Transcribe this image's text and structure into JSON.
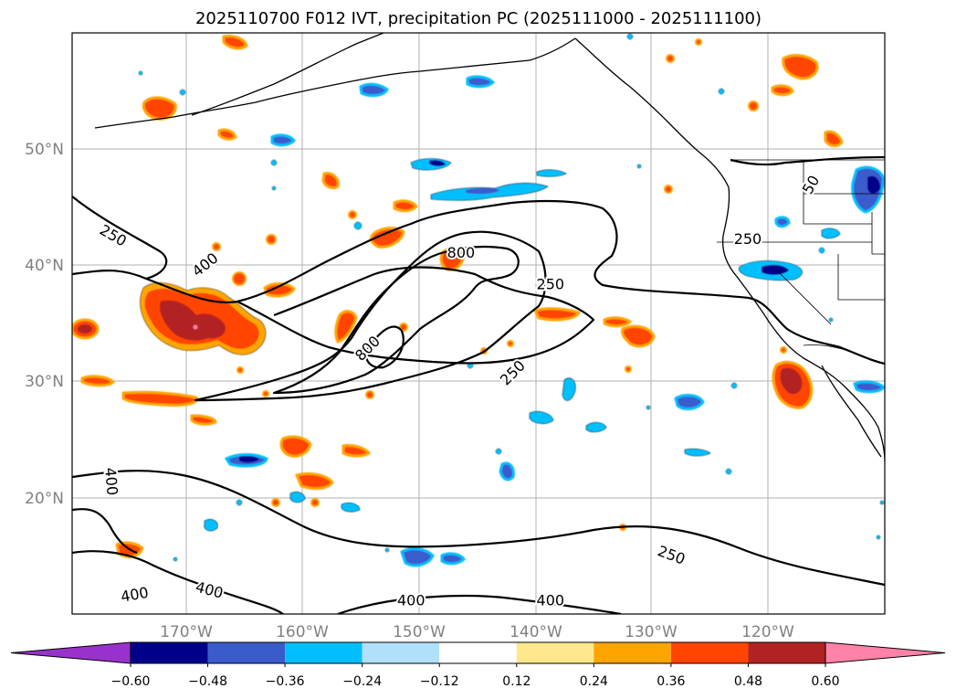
{
  "chart_data": {
    "type": "contour-map",
    "title": "2025110700 F012 IVT, precipitation PC (2025111000 - 2025111100)",
    "x_axis": {
      "ticks": [
        {
          "value": -170,
          "label": "170°W"
        },
        {
          "value": -160,
          "label": "160°W"
        },
        {
          "value": -150,
          "label": "150°W"
        },
        {
          "value": -140,
          "label": "140°W"
        },
        {
          "value": -130,
          "label": "130°W"
        },
        {
          "value": -120,
          "label": "120°W"
        }
      ],
      "range": [
        -178,
        -108
      ]
    },
    "y_axis": {
      "ticks": [
        {
          "value": 20,
          "label": "20°N"
        },
        {
          "value": 30,
          "label": "30°N"
        },
        {
          "value": 40,
          "label": "40°N"
        },
        {
          "value": 50,
          "label": "50°N"
        }
      ],
      "range": [
        10,
        60
      ]
    },
    "grid": true,
    "ivt_contour_labels": [
      {
        "text": "250",
        "lon": -174.5,
        "lat": 42.5,
        "angle": 30
      },
      {
        "text": "400",
        "lon": -166.5,
        "lat": 40.0,
        "angle": -38
      },
      {
        "text": "800",
        "lon": -144.5,
        "lat": 41.0,
        "angle": 0
      },
      {
        "text": "250",
        "lon": -136.8,
        "lat": 38.3,
        "angle": 0
      },
      {
        "text": "800",
        "lon": -152.5,
        "lat": 32.8,
        "angle": -45
      },
      {
        "text": "250",
        "lon": -140.0,
        "lat": 30.7,
        "angle": -45
      },
      {
        "text": "50",
        "lon": -114.3,
        "lat": 46.9,
        "angle": -60
      },
      {
        "text": "250",
        "lon": -119.8,
        "lat": 42.2,
        "angle": 0
      },
      {
        "text": "400",
        "lon": -174.7,
        "lat": 21.4,
        "angle": 85
      },
      {
        "text": "250",
        "lon": -126.4,
        "lat": 15.0,
        "angle": 20
      },
      {
        "text": "400",
        "lon": -172.6,
        "lat": 11.6,
        "angle": -10
      },
      {
        "text": "400",
        "lon": -166.2,
        "lat": 12.0,
        "angle": 15
      },
      {
        "text": "400",
        "lon": -148.8,
        "lat": 11.1,
        "angle": 0
      },
      {
        "text": "400",
        "lon": -136.8,
        "lat": 11.1,
        "angle": 0
      }
    ],
    "colorbar": {
      "levels": [
        -0.6,
        -0.48,
        -0.36,
        -0.24,
        -0.12,
        0.12,
        0.24,
        0.36,
        0.48,
        0.6
      ],
      "labels": [
        "−0.60",
        "−0.48",
        "−0.36",
        "−0.24",
        "−0.12",
        "0.12",
        "0.24",
        "0.36",
        "0.48",
        "0.60"
      ],
      "colors": [
        "#9932CC",
        "#00008B",
        "#3A5BCC",
        "#00BFFF",
        "#B0E0FA",
        "#FFFFFF",
        "#FFE88C",
        "#FFA500",
        "#FF4500",
        "#B22222",
        "#FF82A8"
      ],
      "extend": "both"
    },
    "precip_pc_regions": [
      {
        "lon": -167.6,
        "lat": 34.5,
        "value": 0.48
      },
      {
        "lon": -119.4,
        "lat": 30.1,
        "value": 0.48
      },
      {
        "lon": -172.0,
        "lat": 28.7,
        "value": 0.48
      },
      {
        "lon": -174.3,
        "lat": 15.1,
        "value": 0.48
      },
      {
        "lon": -146.9,
        "lat": 40.4,
        "value": 0.36
      },
      {
        "lon": -160.8,
        "lat": 23.9,
        "value": 0.48
      },
      {
        "lon": -170.1,
        "lat": 53.5,
        "value": 0.48
      },
      {
        "lon": -117.0,
        "lat": 57.2,
        "value": 0.36
      },
      {
        "lon": -152.2,
        "lat": 42.7,
        "value": 0.36
      },
      {
        "lon": -165.9,
        "lat": 32.4,
        "value": 0.36
      },
      {
        "lon": -115.4,
        "lat": 49.6,
        "value": 0.36
      },
      {
        "lon": -148.6,
        "lat": 48.9,
        "value": -0.48
      },
      {
        "lon": -140.4,
        "lat": 52.5,
        "value": -0.36
      },
      {
        "lon": -142.0,
        "lat": 47.1,
        "value": -0.36
      },
      {
        "lon": -120.2,
        "lat": 39.5,
        "value": -0.48
      },
      {
        "lon": -112.5,
        "lat": 47.5,
        "value": -0.48
      },
      {
        "lon": -164.1,
        "lat": 23.0,
        "value": -0.48
      },
      {
        "lon": -149.7,
        "lat": 14.5,
        "value": -0.36
      },
      {
        "lon": -124.0,
        "lat": 28.0,
        "value": -0.36
      },
      {
        "lon": -110.3,
        "lat": 29.8,
        "value": -0.36
      }
    ]
  }
}
